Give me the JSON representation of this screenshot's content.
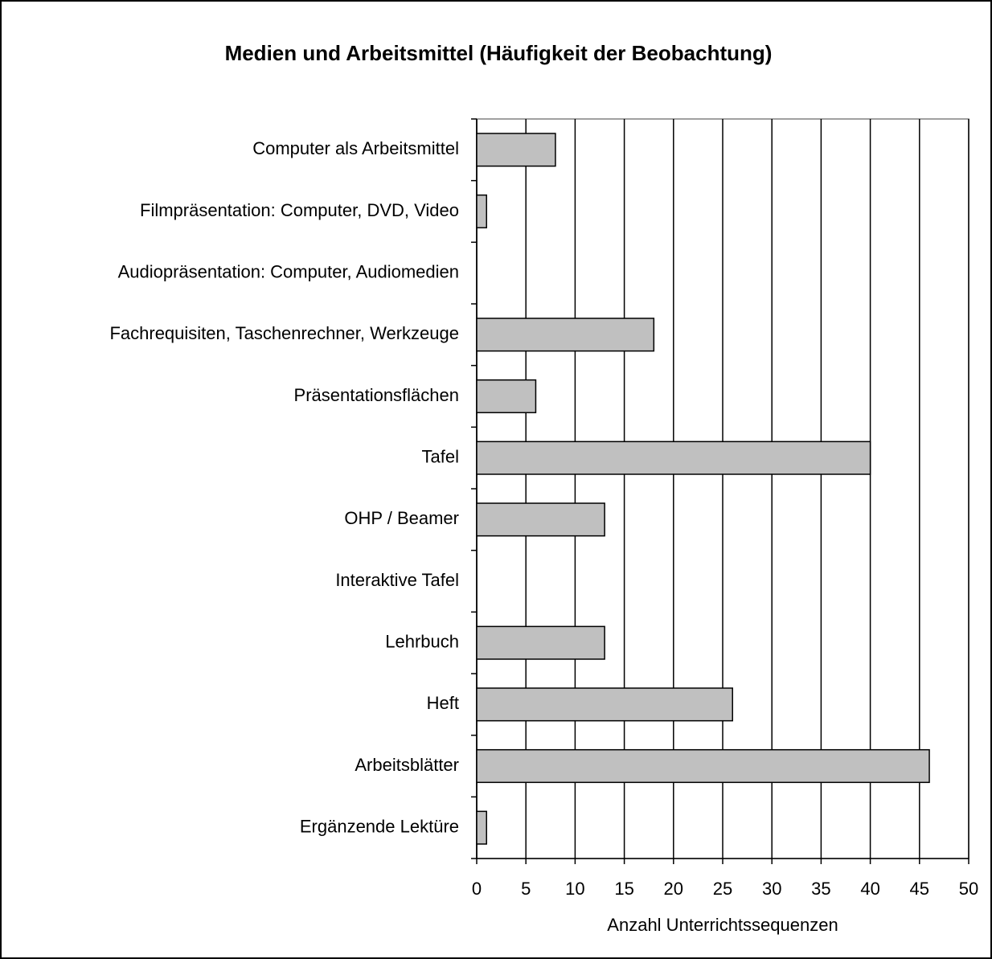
{
  "chart_data": {
    "type": "bar",
    "orientation": "horizontal",
    "title": "Medien und Arbeitsmittel (Häufigkeit der Beobachtung)",
    "x_label": "Anzahl Unterrichtssequenzen",
    "categories": [
      "Computer als Arbeitsmittel",
      "Filmpräsentation: Computer, DVD, Video",
      "Audiopräsentation: Computer, Audiomedien",
      "Fachrequisiten, Taschenrechner, Werkzeuge",
      "Präsentationsflächen",
      "Tafel",
      "OHP / Beamer",
      "Interaktive Tafel",
      "Lehrbuch",
      "Heft",
      "Arbeitsblätter",
      "Ergänzende Lektüre"
    ],
    "values": [
      8,
      1,
      0,
      18,
      6,
      40,
      13,
      0,
      13,
      26,
      46,
      1
    ],
    "color": "#c0c0c0",
    "xlim": [
      0,
      50
    ],
    "xticks": [
      0,
      5,
      10,
      15,
      20,
      25,
      30,
      35,
      40,
      45,
      50
    ],
    "grid": true
  }
}
